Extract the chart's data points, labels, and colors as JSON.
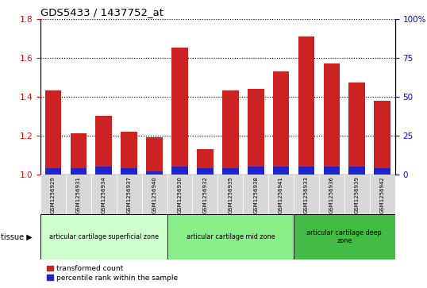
{
  "title": "GDS5433 / 1437752_at",
  "samples": [
    "GSM1256929",
    "GSM1256931",
    "GSM1256934",
    "GSM1256937",
    "GSM1256940",
    "GSM1256930",
    "GSM1256932",
    "GSM1256935",
    "GSM1256938",
    "GSM1256941",
    "GSM1256933",
    "GSM1256936",
    "GSM1256939",
    "GSM1256942"
  ],
  "transformed_count": [
    1.43,
    1.21,
    1.3,
    1.22,
    1.19,
    1.65,
    1.13,
    1.43,
    1.44,
    1.53,
    1.71,
    1.57,
    1.47,
    1.38
  ],
  "percentile_rank": [
    4,
    4,
    5,
    4,
    2,
    5,
    4,
    4,
    5,
    5,
    5,
    5,
    5,
    4
  ],
  "ylim_left": [
    1.0,
    1.8
  ],
  "ylim_right": [
    0,
    100
  ],
  "yticks_left": [
    1.0,
    1.2,
    1.4,
    1.6,
    1.8
  ],
  "yticks_right": [
    0,
    25,
    50,
    75,
    100
  ],
  "bar_color_red": "#cc2222",
  "bar_color_blue": "#2222cc",
  "tissue_groups": [
    {
      "label": "articular cartilage superficial zone",
      "indices": [
        0,
        1,
        2,
        3,
        4
      ],
      "color": "#ccffcc"
    },
    {
      "label": "articular cartilage mid zone",
      "indices": [
        5,
        6,
        7,
        8,
        9
      ],
      "color": "#88ee88"
    },
    {
      "label": "articular cartilage deep\nzone",
      "indices": [
        10,
        11,
        12,
        13
      ],
      "color": "#44bb44"
    }
  ],
  "legend_red": "transformed count",
  "legend_blue": "percentile rank within the sample",
  "tissue_label": "tissue",
  "bg_color": "#ffffff",
  "tick_label_bg": "#d8d8d8"
}
